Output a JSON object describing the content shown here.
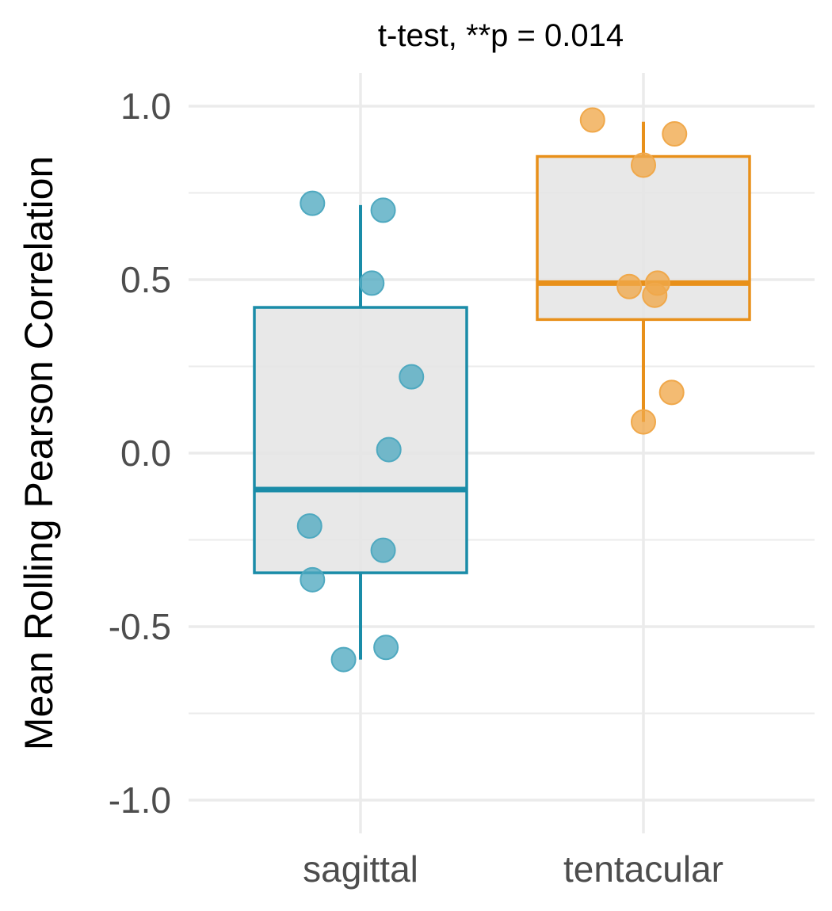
{
  "chart_data": {
    "type": "box",
    "title": "t-test,  **p = 0.014",
    "xlabel": "",
    "ylabel": "Mean Rolling Pearson Correlation",
    "ylim": [
      -1.08,
      1.1
    ],
    "yticks": [
      "1.0",
      "0.5",
      "0.0",
      "-0.5",
      "-1.0"
    ],
    "ytick_values": [
      1.0,
      0.5,
      0.0,
      -0.5,
      -1.0
    ],
    "minor_grid_values": [
      0.75,
      0.25,
      -0.25,
      -0.75
    ],
    "grid": true,
    "categories": [
      "sagittal",
      "tentacular"
    ],
    "series": [
      {
        "category": "sagittal",
        "color": "#1a8ca8",
        "point_color": "#4fa9c0",
        "box": {
          "q1": -0.345,
          "median": -0.105,
          "q3": 0.42,
          "whisker_low": -0.595,
          "whisker_high": 0.715
        },
        "points": [
          {
            "jitter": -0.17,
            "value": 0.72
          },
          {
            "jitter": 0.08,
            "value": 0.7
          },
          {
            "jitter": 0.04,
            "value": 0.49
          },
          {
            "jitter": 0.18,
            "value": 0.22
          },
          {
            "jitter": 0.1,
            "value": 0.01
          },
          {
            "jitter": -0.18,
            "value": -0.21
          },
          {
            "jitter": 0.08,
            "value": -0.28
          },
          {
            "jitter": -0.17,
            "value": -0.365
          },
          {
            "jitter": 0.09,
            "value": -0.56
          },
          {
            "jitter": -0.06,
            "value": -0.595
          }
        ]
      },
      {
        "category": "tentacular",
        "color": "#e8901a",
        "point_color": "#f0a84a",
        "box": {
          "q1": 0.385,
          "median": 0.49,
          "q3": 0.855,
          "whisker_low": 0.09,
          "whisker_high": 0.955
        },
        "points": [
          {
            "jitter": -0.18,
            "value": 0.96
          },
          {
            "jitter": 0.11,
            "value": 0.92
          },
          {
            "jitter": 0.0,
            "value": 0.83
          },
          {
            "jitter": -0.05,
            "value": 0.48
          },
          {
            "jitter": 0.05,
            "value": 0.49
          },
          {
            "jitter": 0.04,
            "value": 0.455
          },
          {
            "jitter": 0.1,
            "value": 0.175
          },
          {
            "jitter": 0.0,
            "value": 0.09
          }
        ]
      }
    ]
  }
}
